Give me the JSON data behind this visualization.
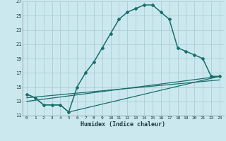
{
  "xlabel": "Humidex (Indice chaleur)",
  "ylabel": "",
  "bg_color": "#cce8ef",
  "grid_color": "#aacdd6",
  "line_color": "#1a6e6a",
  "xlim": [
    -0.5,
    23.5
  ],
  "ylim": [
    11,
    27
  ],
  "xticks": [
    0,
    1,
    2,
    3,
    4,
    5,
    6,
    7,
    8,
    9,
    10,
    11,
    12,
    13,
    14,
    15,
    16,
    17,
    18,
    19,
    20,
    21,
    22,
    23
  ],
  "yticks": [
    11,
    13,
    15,
    17,
    19,
    21,
    23,
    25,
    27
  ],
  "series": [
    {
      "x": [
        0,
        1,
        2,
        3,
        4,
        5,
        6,
        7,
        8,
        9,
        10,
        11,
        12,
        13,
        14,
        15,
        16,
        17,
        18,
        19,
        20,
        21,
        22,
        23
      ],
      "y": [
        14.0,
        13.5,
        12.5,
        12.5,
        12.5,
        11.5,
        15.0,
        17.0,
        18.5,
        20.5,
        22.5,
        24.5,
        25.5,
        26.0,
        26.5,
        26.5,
        25.5,
        24.5,
        20.5,
        20.0,
        19.5,
        19.0,
        16.5,
        16.5
      ],
      "marker": "D",
      "markersize": 2.0,
      "linewidth": 1.1,
      "has_marker": true
    },
    {
      "x": [
        0,
        1,
        2,
        3,
        4,
        5,
        23
      ],
      "y": [
        14.0,
        13.5,
        12.5,
        12.5,
        12.5,
        11.5,
        16.5
      ],
      "marker": null,
      "markersize": 0,
      "linewidth": 0.9,
      "has_marker": false
    },
    {
      "x": [
        0,
        23
      ],
      "y": [
        13.0,
        16.5
      ],
      "marker": null,
      "markersize": 0,
      "linewidth": 0.9,
      "has_marker": false
    },
    {
      "x": [
        0,
        23
      ],
      "y": [
        13.5,
        16.0
      ],
      "marker": null,
      "markersize": 0,
      "linewidth": 0.9,
      "has_marker": false
    }
  ]
}
